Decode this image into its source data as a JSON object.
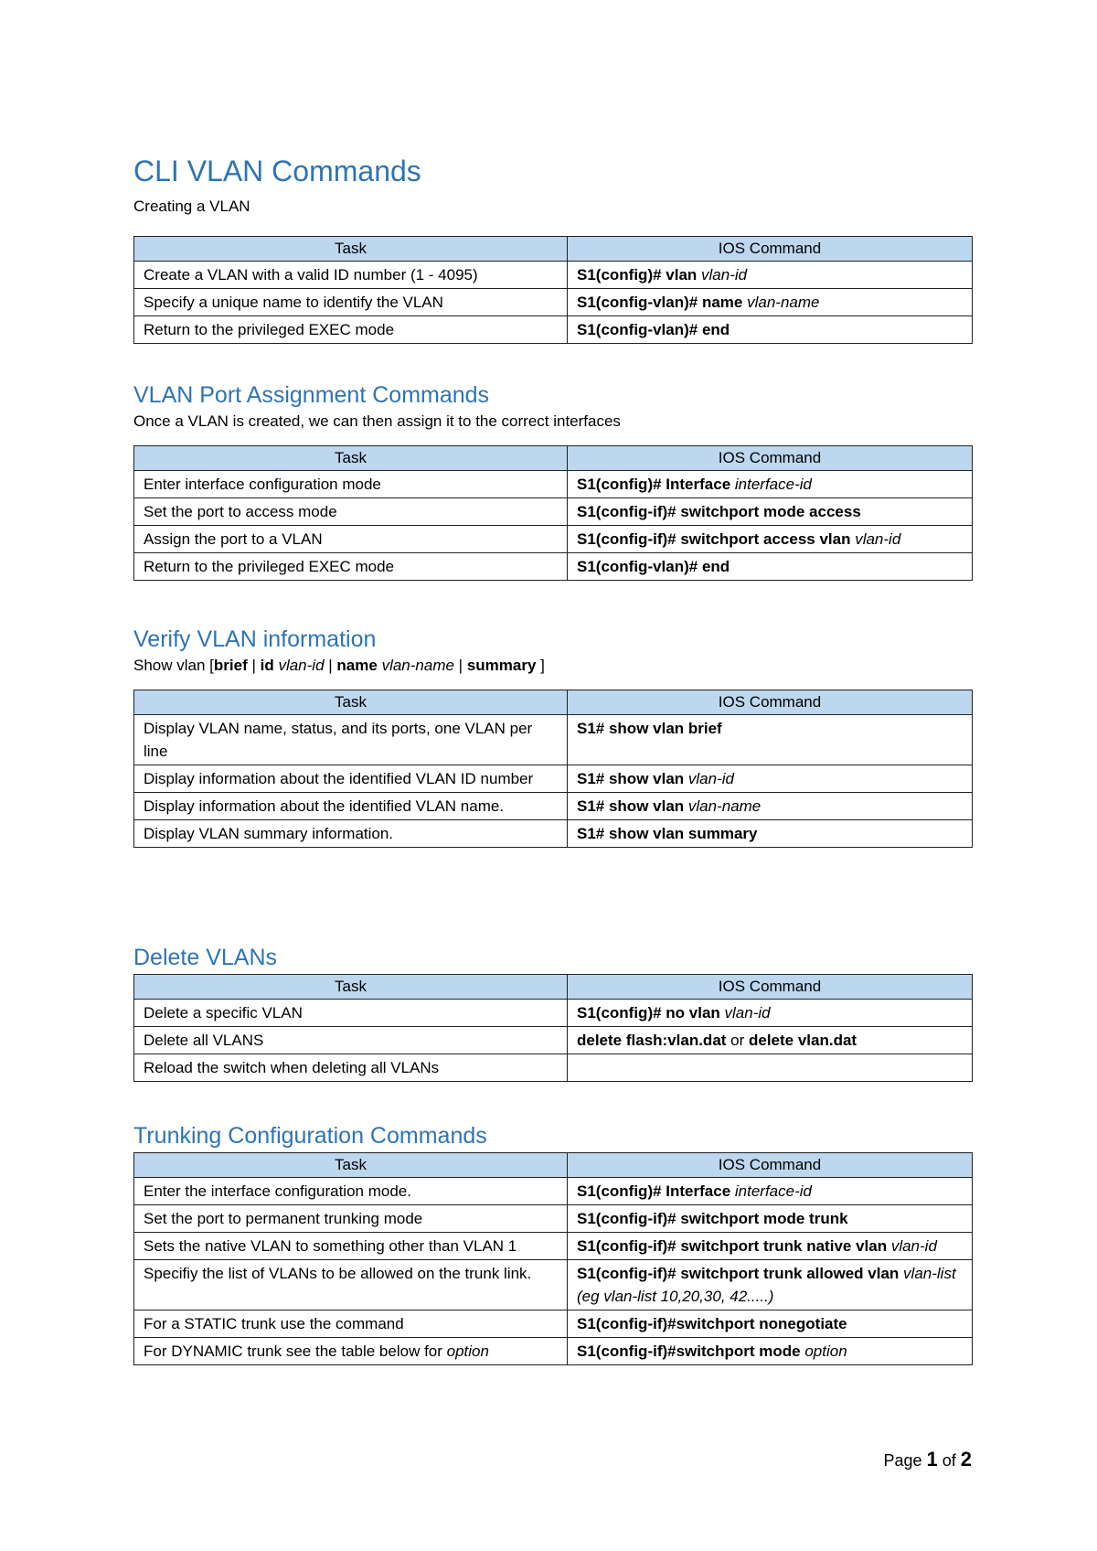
{
  "title": "CLI VLAN Commands",
  "sections": [
    {
      "heading": "",
      "subtitle": [
        {
          "t": "Creating a VLAN"
        }
      ],
      "headers": [
        "Task",
        "IOS Command"
      ],
      "rows": [
        {
          "task": [
            {
              "t": "Create a VLAN with a valid ID number (1 - 4095)"
            }
          ],
          "cmd": [
            {
              "t": "S1(config)# vlan ",
              "b": true
            },
            {
              "t": "vlan-id",
              "i": true
            }
          ]
        },
        {
          "task": [
            {
              "t": "Specify a unique name to identify the VLAN"
            }
          ],
          "cmd": [
            {
              "t": "S1(config-vlan)# name ",
              "b": true
            },
            {
              "t": "vlan-name",
              "i": true
            }
          ]
        },
        {
          "task": [
            {
              "t": "Return to the privileged EXEC mode"
            }
          ],
          "cmd": [
            {
              "t": "S1(config-vlan)# end",
              "b": true
            }
          ]
        }
      ]
    },
    {
      "heading": "VLAN Port Assignment Commands",
      "subtitle": [
        {
          "t": "Once a VLAN is created, we can then assign it to the correct interfaces"
        }
      ],
      "headers": [
        "Task",
        "IOS Command"
      ],
      "rows": [
        {
          "task": [
            {
              "t": "Enter interface configuration mode"
            }
          ],
          "cmd": [
            {
              "t": "S1(config)# Interface ",
              "b": true
            },
            {
              "t": "interface-id",
              "i": true
            }
          ]
        },
        {
          "task": [
            {
              "t": "Set the port to access mode"
            }
          ],
          "cmd": [
            {
              "t": "S1(config-if)# switchport mode access",
              "b": true
            }
          ]
        },
        {
          "task": [
            {
              "t": "Assign the port to a VLAN"
            }
          ],
          "cmd": [
            {
              "t": "S1(config-if)# switchport access vlan ",
              "b": true
            },
            {
              "t": "vlan-id",
              "i": true
            }
          ]
        },
        {
          "task": [
            {
              "t": "Return to the privileged EXEC mode"
            }
          ],
          "cmd": [
            {
              "t": "S1(config-vlan)# end",
              "b": true
            }
          ]
        }
      ]
    },
    {
      "heading": "Verify VLAN information",
      "subtitle": [
        {
          "t": "Show vlan ["
        },
        {
          "t": "brief",
          "b": true
        },
        {
          "t": " | "
        },
        {
          "t": "id",
          "b": true
        },
        {
          "t": " "
        },
        {
          "t": "vlan-id",
          "i": true
        },
        {
          "t": " | "
        },
        {
          "t": "name",
          "b": true
        },
        {
          "t": " "
        },
        {
          "t": "vlan-name",
          "i": true
        },
        {
          "t": " | "
        },
        {
          "t": "summary",
          "b": true
        },
        {
          "t": " ]"
        }
      ],
      "headers": [
        "Task",
        "IOS Command"
      ],
      "rows": [
        {
          "task": [
            {
              "t": "Display VLAN name, status, and its ports, one VLAN per line"
            }
          ],
          "cmd": [
            {
              "t": "S1# show vlan brief",
              "b": true
            }
          ]
        },
        {
          "task": [
            {
              "t": "Display information about the identified VLAN ID number"
            }
          ],
          "cmd": [
            {
              "t": "S1# show vlan ",
              "b": true
            },
            {
              "t": "vlan-id",
              "i": true
            }
          ]
        },
        {
          "task": [
            {
              "t": "Display information about the identified VLAN name."
            }
          ],
          "cmd": [
            {
              "t": "S1# show vlan ",
              "b": true
            },
            {
              "t": "vlan-name",
              "i": true
            }
          ]
        },
        {
          "task": [
            {
              "t": "Display VLAN summary information."
            }
          ],
          "cmd": [
            {
              "t": "S1# show vlan summary",
              "b": true
            }
          ]
        }
      ]
    },
    {
      "heading": "Delete VLANs",
      "subtitle": [],
      "headers": [
        "Task",
        "IOS Command"
      ],
      "rows": [
        {
          "task": [
            {
              "t": "Delete a specific VLAN"
            }
          ],
          "cmd": [
            {
              "t": "S1(config)# no vlan ",
              "b": true
            },
            {
              "t": "vlan-id",
              "i": true
            }
          ]
        },
        {
          "task": [
            {
              "t": "Delete all VLANS"
            }
          ],
          "cmd": [
            {
              "t": "delete flash:vlan.dat",
              "b": true
            },
            {
              "t": " or "
            },
            {
              "t": "delete vlan.dat",
              "b": true
            }
          ]
        },
        {
          "task": [
            {
              "t": "Reload the switch when deleting all VLANs"
            }
          ],
          "cmd": []
        }
      ]
    },
    {
      "heading": "Trunking Configuration Commands",
      "subtitle": [],
      "headers": [
        "Task",
        "IOS Command"
      ],
      "rows": [
        {
          "task": [
            {
              "t": "Enter the interface configuration mode."
            }
          ],
          "cmd": [
            {
              "t": "S1(config)# Interface ",
              "b": true
            },
            {
              "t": "interface-id",
              "i": true
            }
          ]
        },
        {
          "task": [
            {
              "t": "Set the port to permanent trunking mode"
            }
          ],
          "cmd": [
            {
              "t": "S1(config-if)# switchport mode trunk",
              "b": true
            }
          ]
        },
        {
          "task": [
            {
              "t": "Sets the native VLAN to something other than VLAN 1"
            }
          ],
          "cmd": [
            {
              "t": "S1(config-if)# switchport trunk native vlan ",
              "b": true
            },
            {
              "t": "vlan-id",
              "i": true
            }
          ]
        },
        {
          "task": [
            {
              "t": "Specifiy the list of VLANs to be allowed on the trunk link."
            }
          ],
          "cmd": [
            {
              "t": "S1(config-if)# switchport trunk allowed vlan ",
              "b": true
            },
            {
              "t": "vlan-list (eg vlan-list 10,20,30, 42.....)",
              "i": true
            }
          ]
        },
        {
          "task": [
            {
              "t": "For a STATIC trunk use the command"
            }
          ],
          "cmd": [
            {
              "t": "S1(config-if)#switchport nonegotiate",
              "b": true
            }
          ]
        },
        {
          "task": [
            {
              "t": "For DYNAMIC trunk see the table below for "
            },
            {
              "t": "option",
              "i": true
            }
          ],
          "cmd": [
            {
              "t": "S1(config-if)#switchport mode ",
              "b": true
            },
            {
              "t": "option",
              "i": true
            }
          ]
        }
      ]
    }
  ],
  "footer": {
    "page_label": "Page ",
    "current": "1",
    "of_label": " of ",
    "total": "2"
  },
  "colors": {
    "heading": "#2E74B5",
    "table_header_bg": "#BDD7EE"
  }
}
